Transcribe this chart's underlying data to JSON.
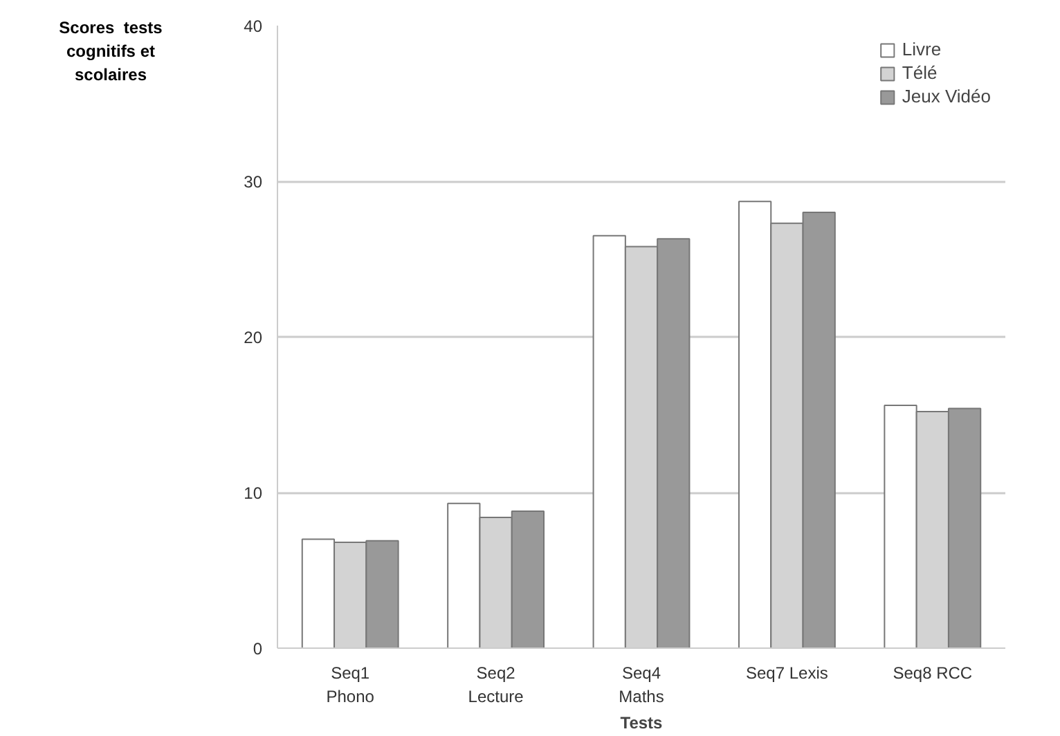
{
  "chart_data": {
    "type": "bar",
    "ylabel": "Scores  tests\ncognitifs et\nscolaires",
    "xlabel": "Tests",
    "categories": [
      "Seq1\nPhono",
      "Seq2\nLecture",
      "Seq4\nMaths",
      "Seq7 Lexis",
      "Seq8 RCC"
    ],
    "series": [
      {
        "name": "Livre",
        "color": "#ffffff",
        "values": [
          7.0,
          9.3,
          26.5,
          28.7,
          15.6
        ]
      },
      {
        "name": "Télé",
        "color": "#d3d3d3",
        "values": [
          6.8,
          8.4,
          25.8,
          27.3,
          15.2
        ]
      },
      {
        "name": "Jeux Vidéo",
        "color": "#999999",
        "values": [
          6.9,
          8.8,
          26.3,
          28.0,
          15.4
        ]
      }
    ],
    "ylim": [
      0,
      40
    ],
    "yticks": [
      0,
      10,
      20,
      30,
      40
    ],
    "grid": "y",
    "legend": "top right"
  }
}
